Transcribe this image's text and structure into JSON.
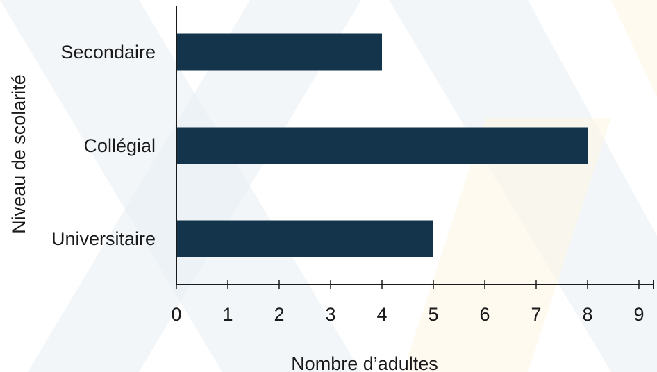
{
  "chart_data": {
    "type": "bar",
    "orientation": "horizontal",
    "categories": [
      "Secondaire",
      "Collégial",
      "Universitaire"
    ],
    "values": [
      4,
      8,
      5
    ],
    "xlabel": "Nombre d’adultes",
    "ylabel": "Niveau de scolarité",
    "xlim": [
      0,
      9
    ],
    "xticks": [
      "0",
      "1",
      "2",
      "3",
      "4",
      "5",
      "6",
      "7",
      "8",
      "9"
    ],
    "grid": false,
    "legend": "none",
    "bar_color": "#14344b",
    "axis_color": "#1a1a1a",
    "background_pattern_colors": [
      "#e8eef4",
      "#fdf6e3"
    ]
  }
}
